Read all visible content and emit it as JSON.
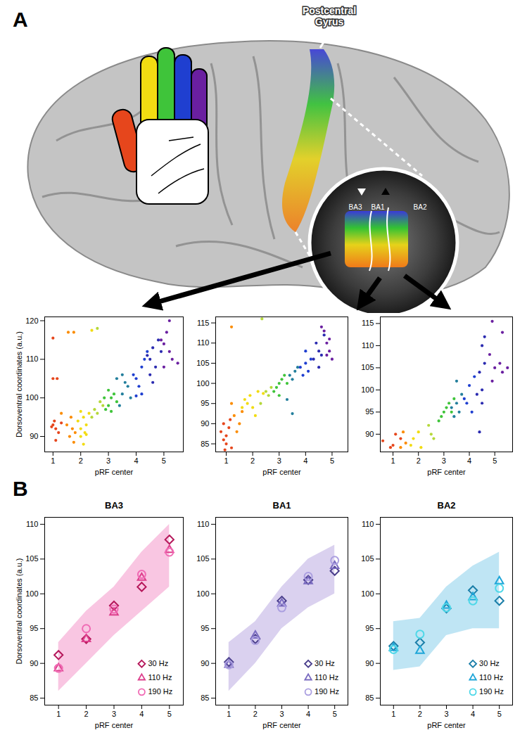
{
  "figure": {
    "panel_labels": [
      "A",
      "B"
    ],
    "annotations": {
      "gyrus": "Postcentral Gyrus",
      "areas": [
        "BA3",
        "BA1",
        "BA2"
      ]
    }
  },
  "chart_data": [
    {
      "type": "scatter",
      "xlabel": "pRF center",
      "ylabel": "Dorsoventral coordinates (a.u.)",
      "xlim": [
        0.7,
        5.7
      ],
      "xticks": [
        1,
        2,
        3,
        4,
        5
      ],
      "ylim": [
        86,
        121
      ],
      "yticks": [
        90,
        100,
        110,
        120
      ],
      "series": [
        {
          "color": "#e6461c",
          "x": [
            1,
            1.05,
            1.1,
            0.95,
            1.0,
            1.0,
            1.15,
            1.2,
            1.3,
            1.1
          ],
          "values": [
            93,
            94,
            92,
            92.5,
            115.5,
            105,
            105,
            91,
            93.5,
            89
          ]
        },
        {
          "color": "#fb8c00",
          "x": [
            1.5,
            1.6,
            1.7,
            1.75,
            1.8,
            1.65,
            1.55,
            1.75,
            1.3
          ],
          "values": [
            93,
            90,
            92,
            88.5,
            91,
            95,
            117,
            117,
            96
          ]
        },
        {
          "color": "#f2dc12",
          "x": [
            2.0,
            2.1,
            2.2,
            2.0,
            2.1,
            1.9,
            2.3,
            2.2,
            2.4,
            2.0,
            2.15
          ],
          "values": [
            92,
            95,
            93,
            90,
            88,
            94,
            96,
            90.5,
            117.5,
            96.5,
            91
          ]
        },
        {
          "color": "#b5d83a",
          "x": [
            2.5,
            2.6,
            2.7,
            2.4,
            2.6,
            2.8
          ],
          "values": [
            97,
            96,
            99,
            95,
            118,
            98
          ]
        },
        {
          "color": "#3fc43a",
          "x": [
            3.0,
            3.1,
            2.9,
            3.2,
            3.0,
            3.1,
            3.3,
            2.85
          ],
          "values": [
            98,
            100,
            97,
            101,
            102,
            96.5,
            99,
            100
          ]
        },
        {
          "color": "#237f9c",
          "x": [
            3.5,
            3.6,
            3.4,
            3.7,
            3.5,
            3.3,
            3.8
          ],
          "values": [
            101,
            104,
            98,
            103,
            106,
            105,
            100
          ]
        },
        {
          "color": "#1f3fd0",
          "x": [
            4.0,
            4.2,
            4.1,
            3.9,
            4.3,
            4.0,
            4.4,
            4.2
          ],
          "values": [
            105,
            108,
            103,
            106,
            110,
            100.5,
            112,
            101
          ]
        },
        {
          "color": "#2b2bb0",
          "x": [
            4.5,
            4.6,
            4.7,
            4.5,
            4.8,
            4.4,
            4.9,
            4.6
          ],
          "values": [
            110,
            113,
            108,
            106,
            115,
            111,
            112,
            104
          ]
        },
        {
          "color": "#6a1fa0",
          "x": [
            5.0,
            5.1,
            5.2,
            5.0,
            5.3,
            5.5,
            5.2,
            4.9
          ],
          "values": [
            114,
            117,
            112,
            108,
            110,
            109,
            120,
            115
          ]
        }
      ]
    },
    {
      "type": "scatter",
      "xlabel": "pRF center",
      "xlim": [
        0.6,
        5.6
      ],
      "xticks": [
        1,
        2,
        3,
        4,
        5
      ],
      "ylim": [
        83,
        116.5
      ],
      "yticks": [
        85,
        90,
        95,
        100,
        105,
        110,
        115
      ],
      "series": [
        {
          "color": "#e6461c",
          "x": [
            0.8,
            0.9,
            1.0,
            1.1,
            0.9,
            1.2,
            1.0,
            1.15,
            0.95
          ],
          "values": [
            88,
            86,
            85,
            89,
            90,
            84,
            87,
            91,
            83.5
          ]
        },
        {
          "color": "#fb8c00",
          "x": [
            1.3,
            1.5,
            1.4,
            1.2,
            1.2,
            1.6
          ],
          "values": [
            92,
            90,
            88,
            95,
            114,
            93
          ]
        },
        {
          "color": "#f2dc12",
          "x": [
            1.8,
            1.9,
            2.0,
            1.7,
            2.1,
            2.4,
            2.2,
            1.6
          ],
          "values": [
            95,
            97,
            94,
            96,
            92,
            97.5,
            98,
            94
          ]
        },
        {
          "color": "#b5d83a",
          "x": [
            2.3,
            2.5,
            2.6,
            2.7,
            2.35
          ],
          "values": [
            95,
            98,
            97,
            99,
            116
          ]
        },
        {
          "color": "#3fc43a",
          "x": [
            2.9,
            3.0,
            3.1,
            2.8,
            3.2,
            3.0,
            3.3
          ],
          "values": [
            99,
            100,
            101,
            98,
            102,
            97,
            100
          ]
        },
        {
          "color": "#237f9c",
          "x": [
            3.4,
            3.5,
            3.6,
            3.3,
            3.5,
            3.7
          ],
          "values": [
            102,
            101,
            103,
            96,
            92.5,
            104
          ]
        },
        {
          "color": "#1f3fd0",
          "x": [
            3.8,
            4.0,
            4.1,
            3.9,
            4.2,
            4.0
          ],
          "values": [
            104,
            105,
            103,
            102,
            106,
            108
          ]
        },
        {
          "color": "#2b2bb0",
          "x": [
            4.3,
            4.5,
            4.6,
            4.4,
            4.7,
            4.5
          ],
          "values": [
            106,
            108,
            107,
            110,
            112,
            104
          ]
        },
        {
          "color": "#6a1fa0",
          "x": [
            4.8,
            4.9,
            4.7,
            5.0,
            4.9,
            4.6,
            4.8
          ],
          "values": [
            110,
            111,
            113,
            106,
            108,
            114,
            107
          ]
        }
      ]
    },
    {
      "type": "scatter",
      "xlabel": "pRF center",
      "xlim": [
        0.5,
        5.7
      ],
      "xticks": [
        1,
        2,
        3,
        4,
        5
      ],
      "ylim": [
        86,
        116.5
      ],
      "yticks": [
        90,
        95,
        100,
        105,
        110,
        115
      ],
      "series": [
        {
          "color": "#e6461c",
          "x": [
            0.6,
            0.9,
            1.0,
            1.1,
            1.3
          ],
          "values": [
            88.5,
            87,
            87.5,
            90,
            89
          ]
        },
        {
          "color": "#fb8c00",
          "x": [
            1.5,
            1.4,
            1.3
          ],
          "values": [
            88,
            90.5,
            87
          ]
        },
        {
          "color": "#f2dc12",
          "x": [
            1.7,
            1.8,
            2.0,
            2.1
          ],
          "values": [
            87.5,
            89,
            90.5,
            87
          ]
        },
        {
          "color": "#b5d83a",
          "x": [
            2.4,
            2.5,
            2.6
          ],
          "values": [
            92,
            90,
            89
          ]
        },
        {
          "color": "#3fc43a",
          "x": [
            2.8,
            3.0,
            3.1,
            3.2,
            2.9,
            3.3,
            3.4
          ],
          "values": [
            93,
            95,
            96,
            97,
            94,
            95,
            98
          ]
        },
        {
          "color": "#237f9c",
          "x": [
            3.3,
            3.5,
            3.6,
            3.4,
            3.7,
            3.5
          ],
          "values": [
            96,
            97,
            95,
            94,
            99,
            102
          ]
        },
        {
          "color": "#1f3fd0",
          "x": [
            3.8,
            4.0,
            4.2,
            3.9,
            4.1
          ],
          "values": [
            98,
            101,
            103,
            97,
            95
          ]
        },
        {
          "color": "#2b2bb0",
          "x": [
            4.4,
            4.5,
            4.5,
            4.6,
            4.3,
            4.5,
            4.4,
            4.6
          ],
          "values": [
            104,
            100,
            110,
            106,
            99,
            97,
            90.5,
            112
          ]
        },
        {
          "color": "#6a1fa0",
          "x": [
            4.9,
            5.0,
            5.2,
            5.3,
            5.5,
            4.9,
            5.3,
            4.8
          ],
          "values": [
            102,
            105,
            106,
            104,
            105,
            115.5,
            113,
            108
          ]
        }
      ]
    },
    {
      "type": "scatter",
      "title": "BA3",
      "xlabel": "pRF center",
      "ylabel": "Dorsoventral coordinates (a.u.)",
      "xlim": [
        0.5,
        5.5
      ],
      "xticks": [
        1,
        2,
        3,
        4,
        5
      ],
      "ylim": [
        84,
        111
      ],
      "yticks": [
        85,
        90,
        95,
        100,
        105,
        110
      ],
      "legend": "lower right",
      "band": {
        "color": "#f7b3d8",
        "x": [
          1,
          2,
          3,
          4,
          5
        ],
        "lower": [
          86,
          90,
          94,
          97.5,
          101
        ],
        "upper": [
          93,
          97.5,
          101,
          106,
          110
        ]
      },
      "series": [
        {
          "name": "30 Hz",
          "color": "#b5175a",
          "marker": "diamond",
          "x": [
            1,
            2,
            3,
            4,
            5
          ],
          "values": [
            91.2,
            93.5,
            98.3,
            101,
            107.8
          ]
        },
        {
          "name": "110 Hz",
          "color": "#dd3f8c",
          "marker": "triangle",
          "x": [
            1,
            2,
            3,
            4,
            5
          ],
          "values": [
            89.3,
            93.5,
            97.3,
            102.3,
            106.3
          ]
        },
        {
          "name": "190 Hz",
          "color": "#f06ab4",
          "marker": "circle",
          "x": [
            1,
            2,
            3,
            4,
            5
          ],
          "values": [
            89.3,
            95,
            97.8,
            102.8,
            106
          ]
        }
      ]
    },
    {
      "type": "scatter",
      "title": "BA1",
      "xlabel": "pRF center",
      "xlim": [
        0.5,
        5.5
      ],
      "xticks": [
        1,
        2,
        3,
        4,
        5
      ],
      "ylim": [
        84,
        111
      ],
      "yticks": [
        85,
        90,
        95,
        100,
        105,
        110
      ],
      "legend": "lower right",
      "band": {
        "color": "#cdc2ea",
        "x": [
          1,
          2,
          3,
          4,
          5
        ],
        "lower": [
          86,
          90,
          95,
          98,
          100
        ],
        "upper": [
          93,
          96,
          101,
          105,
          107
        ]
      },
      "series": [
        {
          "name": "30 Hz",
          "color": "#4a3e8c",
          "marker": "diamond",
          "x": [
            1,
            2,
            3,
            4,
            5
          ],
          "values": [
            90.2,
            93.5,
            99,
            102,
            103.3
          ]
        },
        {
          "name": "110 Hz",
          "color": "#7a6bc0",
          "marker": "triangle",
          "x": [
            1,
            2,
            3,
            4,
            5
          ],
          "values": [
            89.8,
            94,
            98.6,
            101.8,
            104
          ]
        },
        {
          "name": "190 Hz",
          "color": "#ab9fe0",
          "marker": "circle",
          "x": [
            1,
            2,
            3,
            4,
            5
          ],
          "values": [
            89.8,
            93.3,
            98,
            102.5,
            104.8
          ]
        }
      ]
    },
    {
      "type": "scatter",
      "title": "BA2",
      "xlabel": "pRF center",
      "xlim": [
        0.5,
        5.5
      ],
      "xticks": [
        1,
        2,
        3,
        4,
        5
      ],
      "ylim": [
        84,
        111
      ],
      "yticks": [
        85,
        90,
        95,
        100,
        105,
        110
      ],
      "legend": "lower right",
      "band": {
        "color": "#aadcf0",
        "x": [
          1,
          2,
          3,
          4,
          5
        ],
        "lower": [
          89,
          89.5,
          94,
          95,
          95
        ],
        "upper": [
          96,
          96.5,
          101,
          104,
          106
        ]
      },
      "series": [
        {
          "name": "30 Hz",
          "color": "#1a7ea8",
          "marker": "diamond",
          "x": [
            1,
            2,
            3,
            4,
            5
          ],
          "values": [
            92.5,
            93,
            97.9,
            100.5,
            99
          ]
        },
        {
          "name": "110 Hz",
          "color": "#1fa6d8",
          "marker": "triangle",
          "x": [
            1,
            2,
            3,
            4,
            5
          ],
          "values": [
            92.2,
            91.8,
            98.3,
            99.5,
            101.8
          ]
        },
        {
          "name": "190 Hz",
          "color": "#4fd8e8",
          "marker": "circle",
          "x": [
            1,
            2,
            3,
            4,
            5
          ],
          "values": [
            92,
            94.2,
            98,
            99,
            100.8
          ]
        }
      ]
    }
  ]
}
